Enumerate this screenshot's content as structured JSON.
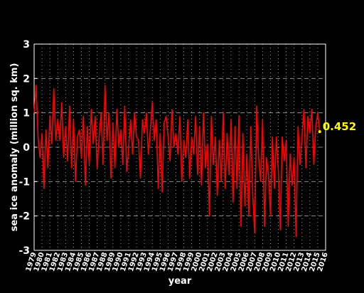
{
  "chart_data": {
    "type": "line",
    "title": "",
    "xlabel": "year",
    "ylabel": "sea ice anomaly (million sq. km)",
    "xlim": [
      1979,
      2016
    ],
    "ylim": [
      -3,
      3
    ],
    "x_ticks": [
      "1979",
      "1980",
      "1981",
      "1982",
      "1983",
      "1984",
      "1985",
      "1986",
      "1987",
      "1988",
      "1989",
      "1990",
      "1991",
      "1992",
      "1993",
      "1994",
      "1995",
      "1996",
      "1997",
      "1998",
      "1999",
      "2000",
      "2001",
      "2002",
      "2003",
      "2004",
      "2005",
      "2006",
      "2007",
      "2008",
      "2009",
      "2010",
      "2011",
      "2012",
      "2013",
      "2014",
      "2015",
      "2016"
    ],
    "y_ticks": [
      "3",
      "2",
      "1",
      "0",
      "-1",
      "-2",
      "-3"
    ],
    "grid": true,
    "series_color": "#ff0000",
    "annotation": {
      "text": "0.452",
      "x": 2015.25,
      "y": 0.452,
      "color": "#ffff00"
    },
    "series": [
      {
        "x": [
          1979,
          1979.25,
          1979.5,
          1979.75,
          1980,
          1980.25,
          1980.5,
          1980.75,
          1981,
          1981.25,
          1981.5,
          1981.75,
          1982,
          1982.25,
          1982.5,
          1982.75,
          1983,
          1983.25,
          1983.5,
          1983.75,
          1984,
          1984.25,
          1984.5,
          1984.75,
          1985,
          1985.25,
          1985.5,
          1985.75,
          1986,
          1986.25,
          1986.5,
          1986.75,
          1987,
          1987.25,
          1987.5,
          1987.75,
          1988,
          1988.25,
          1988.5,
          1988.75,
          1989,
          1989.25,
          1989.5,
          1989.75,
          1990,
          1990.25,
          1990.5,
          1990.75,
          1991,
          1991.25,
          1991.5,
          1991.75,
          1992,
          1992.25,
          1992.5,
          1992.75,
          1993,
          1993.25,
          1993.5,
          1993.75,
          1994,
          1994.25,
          1994.5,
          1994.75,
          1995,
          1995.25,
          1995.5,
          1995.75,
          1996,
          1996.25,
          1996.5,
          1996.75,
          1997,
          1997.25,
          1997.5,
          1997.75,
          1998,
          1998.25,
          1998.5,
          1998.75,
          1999,
          1999.25,
          1999.5,
          1999.75,
          2000,
          2000.25,
          2000.5,
          2000.75,
          2001,
          2001.25,
          2001.5,
          2001.75,
          2002,
          2002.25,
          2002.5,
          2002.75,
          2003,
          2003.25,
          2003.5,
          2003.75,
          2004,
          2004.25,
          2004.5,
          2004.75,
          2005,
          2005.25,
          2005.5,
          2005.75,
          2006,
          2006.25,
          2006.5,
          2006.75,
          2007,
          2007.25,
          2007.5,
          2007.75,
          2008,
          2008.25,
          2008.5,
          2008.75,
          2009,
          2009.25,
          2009.5,
          2009.75,
          2010,
          2010.25,
          2010.5,
          2010.75,
          2011,
          2011.25,
          2011.5,
          2011.75,
          2012,
          2012.25,
          2012.5,
          2012.75,
          2013,
          2013.25,
          2013.5,
          2013.75,
          2014,
          2014.25,
          2014.5,
          2014.75,
          2015,
          2015.25
        ],
        "y": [
          1.0,
          1.8,
          0.3,
          -0.3,
          0.4,
          -1.2,
          0.5,
          -0.6,
          0.9,
          0.1,
          1.7,
          0.2,
          0.8,
          0.2,
          1.3,
          -0.3,
          0.6,
          -0.4,
          1.2,
          -0.6,
          0.8,
          -1.0,
          0.3,
          0.5,
          -0.3,
          0.9,
          -1.1,
          0.6,
          -0.5,
          1.1,
          0.1,
          0.9,
          -0.6,
          0.3,
          1.0,
          -0.5,
          1.8,
          0.2,
          1.0,
          -0.9,
          0.7,
          -0.6,
          1.1,
          0.0,
          0.5,
          -0.5,
          1.2,
          -0.7,
          0.0,
          0.8,
          -0.2,
          1.0,
          0.3,
          0.2,
          -0.9,
          0.8,
          0.4,
          1.0,
          -0.2,
          0.5,
          1.3,
          0.2,
          0.8,
          -1.2,
          0.4,
          -1.3,
          0.7,
          0.9,
          0.3,
          -0.4,
          1.1,
          0.0,
          0.4,
          -0.2,
          0.9,
          -1.0,
          0.2,
          -0.3,
          0.8,
          -0.9,
          0.3,
          -0.2,
          0.9,
          -0.8,
          0.6,
          -1.1,
          1.0,
          -0.6,
          0.1,
          -2.0,
          0.9,
          -0.5,
          0.3,
          -1.4,
          0.2,
          -1.0,
          1.0,
          -1.2,
          0.4,
          -0.8,
          0.8,
          -1.6,
          0.6,
          -1.2,
          0.9,
          -2.3,
          0.4,
          -1.7,
          -0.2,
          -2.0,
          0.6,
          -1.4,
          -2.5,
          1.2,
          -0.3,
          -1.0,
          0.8,
          -2.3,
          -0.3,
          -0.8,
          -2.0,
          0.3,
          -1.2,
          0.3,
          -0.7,
          -2.4,
          0.3,
          -0.4,
          0.2,
          -2.3,
          -0.2,
          -1.1,
          -0.3,
          -2.6,
          0.6,
          -0.5,
          0.3,
          1.1,
          -0.6,
          0.9,
          0.4,
          1.1,
          -0.5,
          0.6,
          1.0,
          0.452
        ]
      }
    ]
  }
}
